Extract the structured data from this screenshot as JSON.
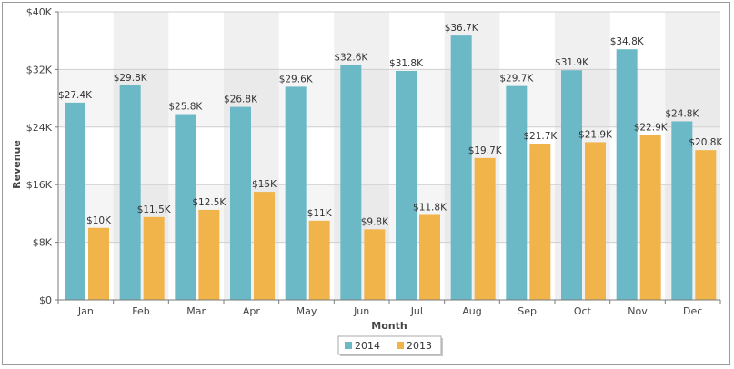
{
  "chart_data": {
    "type": "bar",
    "xlabel": "Month",
    "ylabel": "Revenue",
    "ylim": [
      0,
      40000
    ],
    "yticks": [
      0,
      8000,
      16000,
      24000,
      32000,
      40000
    ],
    "ytick_labels": [
      "$0",
      "$8K",
      "$16K",
      "$24K",
      "$32K",
      "$40K"
    ],
    "categories": [
      "Jan",
      "Feb",
      "Mar",
      "Apr",
      "May",
      "Jun",
      "Jul",
      "Aug",
      "Sep",
      "Oct",
      "Nov",
      "Dec"
    ],
    "grid": true,
    "legend_position": "bottom-center",
    "series": [
      {
        "name": "2014",
        "color": "#6bb8c6",
        "values": [
          27400,
          29800,
          25800,
          26800,
          29600,
          32600,
          31800,
          36700,
          29700,
          31900,
          34800,
          24800
        ],
        "labels": [
          "$27.4K",
          "$29.8K",
          "$25.8K",
          "$26.8K",
          "$29.6K",
          "$32.6K",
          "$31.8K",
          "$36.7K",
          "$29.7K",
          "$31.9K",
          "$34.8K",
          "$24.8K"
        ]
      },
      {
        "name": "2013",
        "color": "#f0b44a",
        "values": [
          10000,
          11500,
          12500,
          15000,
          11000,
          9800,
          11800,
          19700,
          21700,
          21900,
          22900,
          20800
        ],
        "labels": [
          "$10K",
          "$11.5K",
          "$12.5K",
          "$15K",
          "$11K",
          "$9.8K",
          "$11.8K",
          "$19.7K",
          "$21.7K",
          "$21.9K",
          "$22.9K",
          "$20.8K"
        ]
      }
    ]
  }
}
